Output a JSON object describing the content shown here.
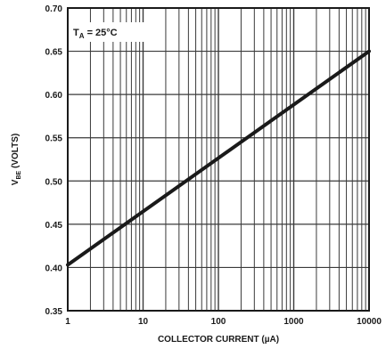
{
  "chart_data": {
    "type": "line",
    "xlabel": "COLLECTOR CURRENT (µA)",
    "ylabel": "V",
    "ylabel_subscript": "BE",
    "ylabel_suffix": " (VOLTS)",
    "xscale": "log",
    "xlim": [
      1,
      10000
    ],
    "ylim": [
      0.35,
      0.7
    ],
    "grid": true,
    "x_tick_labels": [
      "1",
      "10",
      "100",
      "1000",
      "10000"
    ],
    "y_tick_labels": [
      "0.35",
      "0.40",
      "0.45",
      "0.50",
      "0.55",
      "0.60",
      "0.65",
      "0.70"
    ],
    "annotation": {
      "main": "T",
      "sub": "A",
      "rest": " = 25°C"
    },
    "series": [
      {
        "x": [
          1,
          10000
        ],
        "y": [
          0.403,
          0.65
        ]
      }
    ],
    "colors": {
      "line": "#1a1a1a",
      "grid": "#3a3a3a"
    }
  }
}
